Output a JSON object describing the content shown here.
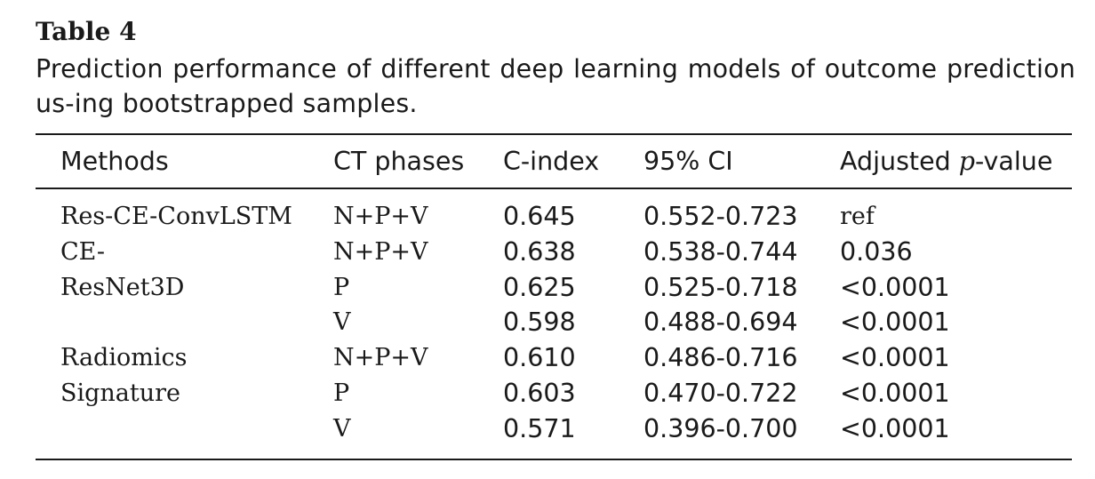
{
  "caption": {
    "label": "Table 4",
    "text": "Prediction performance of different deep learning models of outcome prediction us-ing bootstrapped samples."
  },
  "table": {
    "headers": {
      "methods": "Methods",
      "ct_phases": "CT phases",
      "c_index": "C-index",
      "ci": "95% CI",
      "adj_prefix": "Adjusted ",
      "adj_p": "p",
      "adj_suffix": "-value"
    },
    "rows": [
      {
        "method": "Res-CE-ConvLSTM",
        "phases": "N+P+V",
        "cindex": "0.645",
        "ci": "0.552-0.723",
        "pvalue": "ref"
      },
      {
        "method": "CE-",
        "phases": "N+P+V",
        "cindex": "0.638",
        "ci": "0.538-0.744",
        "pvalue": "0.036"
      },
      {
        "method": "ResNet3D",
        "phases": "P",
        "cindex": "0.625",
        "ci": "0.525-0.718",
        "pvalue": "<0.0001"
      },
      {
        "method": "",
        "phases": "V",
        "cindex": "0.598",
        "ci": "0.488-0.694",
        "pvalue": "<0.0001"
      },
      {
        "method": "Radiomics",
        "phases": "N+P+V",
        "cindex": "0.610",
        "ci": "0.486-0.716",
        "pvalue": "<0.0001"
      },
      {
        "method": "Signature",
        "phases": "P",
        "cindex": "0.603",
        "ci": "0.470-0.722",
        "pvalue": "<0.0001"
      },
      {
        "method": "",
        "phases": "V",
        "cindex": "0.571",
        "ci": "0.396-0.700",
        "pvalue": "<0.0001"
      }
    ]
  }
}
